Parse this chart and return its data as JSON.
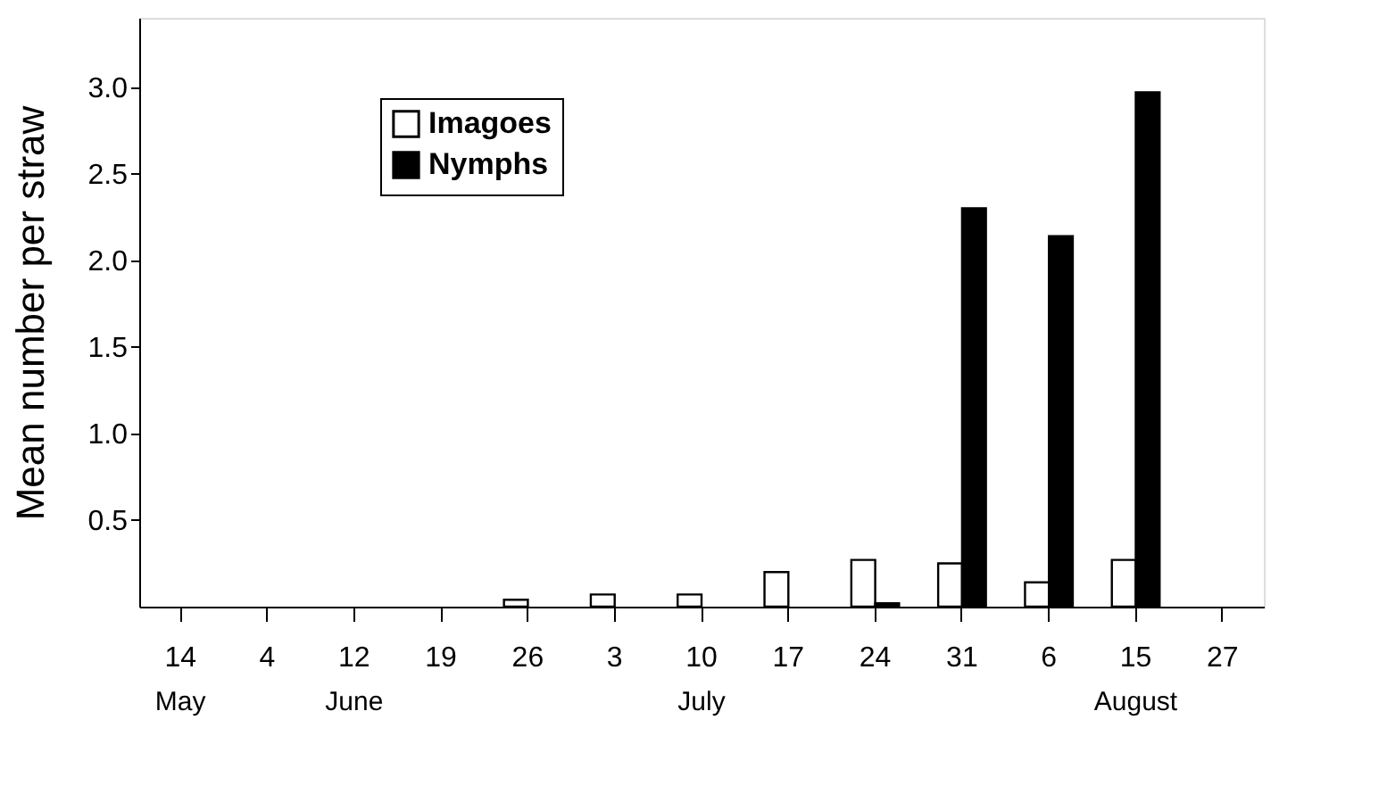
{
  "chart_data": {
    "type": "bar",
    "ylabel": "Mean number per straw",
    "categories": [
      "14",
      "4",
      "12",
      "19",
      "26",
      "3",
      "10",
      "17",
      "24",
      "31",
      "6",
      "15",
      "27"
    ],
    "series": [
      {
        "name": "Imagoes",
        "color": "#ffffff",
        "values": [
          null,
          null,
          null,
          null,
          0.04,
          0.07,
          0.07,
          0.2,
          0.27,
          0.25,
          0.14,
          0.27,
          null
        ]
      },
      {
        "name": "Nymphs",
        "color": "#000000",
        "values": [
          null,
          null,
          null,
          null,
          null,
          null,
          null,
          null,
          0.02,
          2.3,
          2.14,
          2.97,
          null
        ]
      }
    ],
    "ylim": [
      0,
      3.4
    ],
    "yticks": [
      0.5,
      {
        "value": 1,
        "label": "1.0"
      },
      1.5,
      {
        "value": 2,
        "label": "2.0"
      },
      2.5,
      {
        "value": 3,
        "label": "3.0"
      }
    ],
    "annotations": [
      "May",
      "June",
      "July",
      "August"
    ],
    "legend": "top left",
    "grid": false
  }
}
